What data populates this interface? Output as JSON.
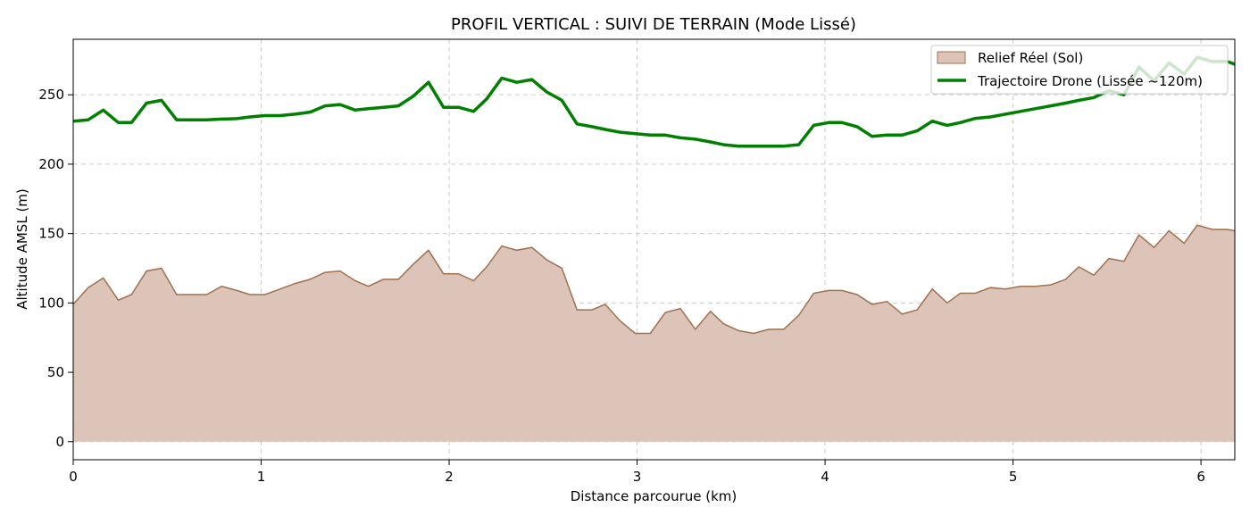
{
  "chart_data": {
    "type": "area",
    "title": "PROFIL VERTICAL : SUIVI DE TERRAIN (Mode Lissé)",
    "xlabel": "Distance parcourue (km)",
    "ylabel": "Altitude AMSL (m)",
    "xlim": [
      0,
      6.18
    ],
    "ylim": [
      -13,
      290
    ],
    "x_ticks": [
      0,
      1,
      2,
      3,
      4,
      5,
      6
    ],
    "y_ticks": [
      0,
      50,
      100,
      150,
      200,
      250
    ],
    "grid": true,
    "legend_position": "top-right",
    "x": [
      0.0,
      0.08,
      0.16,
      0.24,
      0.31,
      0.39,
      0.47,
      0.55,
      0.63,
      0.71,
      0.79,
      0.87,
      0.94,
      1.02,
      1.1,
      1.18,
      1.26,
      1.34,
      1.42,
      1.5,
      1.57,
      1.65,
      1.73,
      1.81,
      1.89,
      1.97,
      2.05,
      2.13,
      2.2,
      2.28,
      2.36,
      2.44,
      2.52,
      2.6,
      2.68,
      2.76,
      2.83,
      2.91,
      2.99,
      3.07,
      3.15,
      3.23,
      3.31,
      3.39,
      3.46,
      3.54,
      3.62,
      3.7,
      3.78,
      3.86,
      3.94,
      4.02,
      4.09,
      4.17,
      4.25,
      4.33,
      4.41,
      4.49,
      4.57,
      4.65,
      4.72,
      4.8,
      4.88,
      4.96,
      5.04,
      5.12,
      5.2,
      5.28,
      5.35,
      5.43,
      5.51,
      5.59,
      5.67,
      5.75,
      5.83,
      5.91,
      5.98,
      6.06,
      6.14,
      6.18
    ],
    "series": [
      {
        "name": "Relief Réel (Sol)",
        "style": "area",
        "values": [
          99,
          111,
          118,
          102,
          106,
          123,
          125,
          106,
          106,
          106,
          112,
          109,
          106,
          106,
          110,
          114,
          117,
          122,
          123,
          116,
          112,
          117,
          117,
          128,
          138,
          121,
          121,
          116,
          126,
          141,
          138,
          140,
          131,
          125,
          95,
          95,
          99,
          87,
          78,
          78,
          93,
          96,
          81,
          94,
          85,
          80,
          78,
          81,
          81,
          91,
          107,
          109,
          109,
          106,
          99,
          101,
          92,
          95,
          110,
          100,
          107,
          107,
          111,
          110,
          112,
          112,
          113,
          117,
          126,
          120,
          132,
          130,
          149,
          140,
          152,
          143,
          156,
          153,
          153,
          152
        ]
      },
      {
        "name": "Trajectoire Drone (Lissée ~120m)",
        "style": "line",
        "values": [
          231,
          232,
          239,
          230,
          230,
          244,
          246,
          232,
          232,
          232,
          232.5,
          232.8,
          234,
          235,
          235,
          236,
          237.5,
          242,
          243,
          239,
          240,
          241,
          242,
          249,
          259,
          241,
          241,
          238,
          247,
          262,
          259,
          261,
          252,
          246,
          229,
          227,
          225,
          223,
          222,
          221,
          221,
          219,
          218,
          216,
          214,
          213,
          213,
          213,
          213,
          214,
          228,
          230,
          230,
          227,
          220,
          221,
          221,
          224,
          231,
          228,
          230,
          233,
          234,
          236,
          238,
          240,
          242,
          244,
          246,
          248,
          253,
          250,
          270,
          260,
          273,
          265,
          277,
          274,
          274,
          272
        ]
      }
    ],
    "colors": {
      "terrain_fill": "#dcc5b8",
      "terrain_edge": "#a0704f",
      "drone_line": "#007f00",
      "grid": "#cccccc"
    }
  }
}
